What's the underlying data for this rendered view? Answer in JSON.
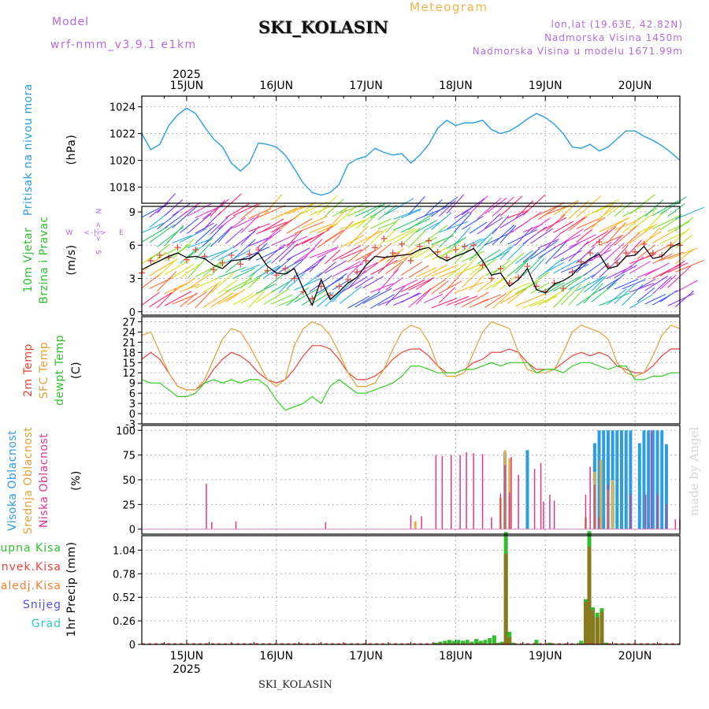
{
  "header": {
    "model_label": "Model",
    "model_value": "wrf-nmm_v3.9.1 e1km",
    "title": "SKI_KOLASIN",
    "product": "Meteogram",
    "lonlat": "lon,lat (19.63E, 42.82N)",
    "altitude": "Nadmorska Visina 1450m",
    "model_altitude": "Nadmorska Visina u modelu 1671.99m",
    "bottom_name": "SKI_KOLASIN",
    "watermark": "made by Angel"
  },
  "time_axis": {
    "year": "2025",
    "days": [
      "15JUN",
      "16JUN",
      "17JUN",
      "18JUN",
      "19JUN",
      "20JUN"
    ]
  },
  "chart_data": [
    {
      "type": "line",
      "name": "pressure",
      "ylabel": "Pritisak na nivou mora",
      "unit": "(hPa)",
      "ylim": [
        1016.8,
        1024.8
      ],
      "yticks": [
        "1018",
        "1020",
        "1022",
        "1024"
      ],
      "x": [
        14.5,
        14.6,
        14.7,
        14.8,
        14.9,
        15.0,
        15.1,
        15.2,
        15.3,
        15.4,
        15.5,
        15.6,
        15.7,
        15.8,
        15.9,
        16.0,
        16.1,
        16.2,
        16.3,
        16.4,
        16.5,
        16.6,
        16.7,
        16.8,
        16.9,
        17.0,
        17.1,
        17.2,
        17.3,
        17.4,
        17.5,
        17.6,
        17.7,
        17.8,
        17.9,
        18.0,
        18.1,
        18.2,
        18.3,
        18.4,
        18.5,
        18.6,
        18.7,
        18.8,
        18.9,
        19.0,
        19.1,
        19.2,
        19.3,
        19.4,
        19.5,
        19.6,
        19.7,
        19.8,
        19.9,
        20.0,
        20.1,
        20.2,
        20.3,
        20.4,
        20.5
      ],
      "y": [
        1022.0,
        1020.8,
        1021.2,
        1022.6,
        1023.4,
        1023.9,
        1023.5,
        1022.5,
        1021.6,
        1021.0,
        1019.8,
        1019.2,
        1019.8,
        1021.3,
        1021.2,
        1021.0,
        1020.4,
        1019.4,
        1018.3,
        1017.6,
        1017.4,
        1017.6,
        1018.2,
        1019.7,
        1020.1,
        1020.3,
        1020.9,
        1020.6,
        1020.4,
        1020.5,
        1019.8,
        1020.4,
        1021.2,
        1022.4,
        1023.0,
        1022.6,
        1022.8,
        1022.8,
        1023.0,
        1022.3,
        1022.0,
        1022.2,
        1022.6,
        1023.1,
        1023.5,
        1023.2,
        1022.7,
        1022.0,
        1021.0,
        1020.9,
        1021.2,
        1020.7,
        1021.0,
        1021.6,
        1022.2,
        1022.2,
        1021.8,
        1021.5,
        1021.1,
        1020.6,
        1020.0
      ]
    },
    {
      "type": "line",
      "name": "wind",
      "ylabel": "10m Vjetar Brzina i Pravac",
      "unit": "(m/s)",
      "compass": {
        "north": "N",
        "south": "S",
        "east": "E",
        "west": "W",
        "arrows": "<-|->"
      },
      "ylim": [
        -0.3,
        9.5
      ],
      "yticks": [
        "0",
        "3",
        "6",
        "9"
      ],
      "x": [
        14.5,
        14.6,
        14.7,
        14.8,
        14.9,
        15.0,
        15.1,
        15.2,
        15.3,
        15.4,
        15.5,
        15.6,
        15.7,
        15.8,
        15.9,
        16.0,
        16.1,
        16.2,
        16.3,
        16.4,
        16.5,
        16.6,
        16.7,
        16.8,
        16.9,
        17.0,
        17.1,
        17.2,
        17.3,
        17.4,
        17.5,
        17.6,
        17.7,
        17.8,
        17.9,
        18.0,
        18.1,
        18.2,
        18.3,
        18.4,
        18.5,
        18.6,
        18.7,
        18.8,
        18.9,
        19.0,
        19.1,
        19.2,
        19.3,
        19.4,
        19.5,
        19.6,
        19.7,
        19.8,
        19.9,
        20.0,
        20.1,
        20.2,
        20.3,
        20.4,
        20.5
      ],
      "y": [
        3.8,
        4.2,
        4.6,
        5.0,
        5.3,
        4.9,
        5.0,
        4.8,
        4.2,
        3.9,
        4.6,
        4.7,
        4.8,
        5.3,
        4.1,
        3.5,
        3.4,
        3.9,
        2.1,
        0.6,
        2.9,
        1.1,
        1.8,
        2.6,
        3.1,
        4.2,
        5.0,
        4.9,
        5.0,
        5.1,
        5.2,
        5.6,
        5.8,
        5.0,
        4.6,
        5.0,
        5.3,
        5.7,
        4.6,
        3.3,
        3.5,
        2.3,
        2.9,
        3.9,
        2.0,
        1.7,
        2.5,
        2.8,
        3.3,
        4.2,
        4.8,
        5.2,
        3.9,
        4.1,
        5.0,
        5.1,
        5.9,
        4.8,
        5.0,
        5.8,
        6.2
      ],
      "gust_y": [
        3.5,
        4.6,
        5.1,
        4.9,
        5.8,
        4.7,
        5.6,
        5.0,
        3.8,
        4.4,
        5.1,
        4.3,
        5.2,
        5.6,
        3.7,
        3.3,
        3.9,
        3.0,
        1.8,
        1.2,
        2.3,
        1.5,
        2.3,
        2.9,
        3.6,
        4.6,
        5.8,
        6.6,
        5.3,
        6.1,
        4.6,
        5.9,
        6.4,
        5.4,
        4.9,
        5.6,
        5.9,
        6.0,
        4.2,
        3.0,
        3.9,
        2.6,
        3.1,
        4.1,
        2.3,
        1.8,
        2.6,
        2.1,
        3.6,
        4.5,
        5.3,
        6.3,
        4.1,
        4.4,
        5.3,
        5.4,
        6.1,
        5.3,
        5.1,
        6.0,
        6.0
      ]
    },
    {
      "type": "line",
      "name": "temperature",
      "ylabel_lines": [
        "2m Temp",
        "SFC Temp",
        "dewpt Temp"
      ],
      "unit": "(C)",
      "ylim": [
        -3,
        28.5
      ],
      "yticks": [
        "-3",
        "0",
        "3",
        "6",
        "9",
        "12",
        "15",
        "18",
        "21",
        "24",
        "27"
      ],
      "x": [
        14.5,
        14.6,
        14.7,
        14.8,
        14.9,
        15.0,
        15.1,
        15.2,
        15.3,
        15.4,
        15.5,
        15.6,
        15.7,
        15.8,
        15.9,
        16.0,
        16.1,
        16.2,
        16.3,
        16.4,
        16.5,
        16.6,
        16.7,
        16.8,
        16.9,
        17.0,
        17.1,
        17.2,
        17.3,
        17.4,
        17.5,
        17.6,
        17.7,
        17.8,
        17.9,
        18.0,
        18.1,
        18.2,
        18.3,
        18.4,
        18.5,
        18.6,
        18.7,
        18.8,
        18.9,
        19.0,
        19.1,
        19.2,
        19.3,
        19.4,
        19.5,
        19.6,
        19.7,
        19.8,
        19.9,
        20.0,
        20.1,
        20.2,
        20.3,
        20.4,
        20.5
      ],
      "series": [
        {
          "name": "2m Temp",
          "color": "#e8453c",
          "values": [
            16,
            18,
            16,
            12,
            8,
            7,
            7,
            9,
            13,
            16,
            18,
            17,
            15,
            12,
            10,
            9,
            10,
            13,
            17,
            20,
            20,
            19,
            16,
            12,
            10,
            10,
            11,
            13,
            16,
            18,
            19,
            19,
            17,
            14,
            12,
            12,
            13,
            15,
            16,
            18,
            18,
            19,
            18,
            15,
            13,
            13,
            13,
            15,
            17,
            18,
            17,
            18,
            17,
            14,
            13,
            12,
            12,
            14,
            17,
            19,
            19
          ]
        },
        {
          "name": "SFC Temp",
          "color": "#e0a13a",
          "values": [
            23,
            24,
            18,
            12,
            8,
            7,
            7,
            10,
            16,
            22,
            25,
            24,
            20,
            15,
            10,
            8,
            10,
            20,
            25,
            27,
            26,
            23,
            18,
            12,
            8,
            8,
            9,
            13,
            19,
            24,
            26,
            25,
            21,
            14,
            11,
            11,
            12,
            18,
            24,
            27,
            26,
            25,
            18,
            13,
            12,
            12,
            13,
            18,
            24,
            26,
            25,
            24,
            22,
            15,
            12,
            11,
            12,
            17,
            23,
            26,
            25
          ]
        },
        {
          "name": "dewpt Temp",
          "color": "#33cc22",
          "values": [
            10,
            9,
            9,
            7,
            5,
            5,
            6,
            9,
            10,
            9,
            10,
            9,
            10,
            10,
            8,
            4,
            1,
            2,
            3,
            5,
            3,
            8,
            10,
            8,
            6,
            6,
            7,
            8,
            9,
            11,
            14,
            14,
            13,
            12,
            12,
            12,
            13,
            13,
            14,
            15,
            14,
            15,
            15,
            15,
            12,
            13,
            13,
            12,
            14,
            15,
            15,
            14,
            13,
            14,
            14,
            10,
            10,
            11,
            11,
            12,
            12
          ]
        }
      ]
    },
    {
      "type": "bar",
      "name": "cloud_cover",
      "ylabel_lines": [
        "Visoka Oblacnost",
        "Srednja Oblacnost",
        "Niska Oblacnost"
      ],
      "unit": "(%)",
      "ylim": [
        -5,
        105
      ],
      "yticks": [
        "0",
        "25",
        "50",
        "75",
        "100"
      ],
      "series": [
        {
          "name": "Visoka Oblacnost",
          "color": "#2b9de0",
          "x": [
            18.55,
            18.8,
            19.55,
            19.6,
            19.65,
            19.7,
            19.75,
            19.8,
            19.85,
            19.9,
            19.95,
            20.05,
            20.1,
            20.15,
            20.2,
            20.25,
            20.3,
            20.35
          ],
          "values": [
            78,
            80,
            87,
            100,
            100,
            100,
            100,
            100,
            100,
            100,
            100,
            87,
            100,
            100,
            100,
            100,
            100,
            86
          ]
        },
        {
          "name": "Srednja Oblacnost",
          "color": "#e4b04a",
          "x": [
            17.55,
            18.5,
            18.55,
            18.6,
            19.45,
            19.55,
            19.62,
            19.7,
            19.75
          ],
          "values": [
            8,
            32,
            80,
            72,
            12,
            58,
            70,
            40,
            50
          ]
        },
        {
          "name": "Niska Oblacnost",
          "color": "#d93a8a",
          "x": [
            15.22,
            15.28,
            15.55,
            16.55,
            17.5,
            17.62,
            17.78,
            17.85,
            17.95,
            18.05,
            18.12,
            18.2,
            18.3,
            18.4,
            18.5,
            18.55,
            18.6,
            18.62,
            18.7,
            18.88,
            18.95,
            18.98,
            19.05,
            19.1,
            19.45,
            19.5,
            19.55,
            19.6,
            19.7,
            19.95,
            20.12,
            20.18,
            20.25,
            20.35,
            20.45,
            20.5
          ],
          "values": [
            46,
            7,
            8,
            7,
            14,
            13,
            75,
            74,
            75,
            75,
            78,
            77,
            76,
            12,
            36,
            65,
            37,
            73,
            55,
            61,
            67,
            28,
            35,
            29,
            35,
            63,
            45,
            12,
            45,
            35,
            35,
            100,
            35,
            25,
            10,
            10
          ]
        }
      ]
    },
    {
      "type": "bar",
      "name": "precipitation",
      "ylabel": "1hr Precip",
      "unit": "(mm)",
      "legend": [
        {
          "name": "Ukupna Kisa",
          "color": "#2fbf2f"
        },
        {
          "name": "Konvek.Kisa",
          "color": "#e8453c"
        },
        {
          "name": "Zaledj.Kisa",
          "color": "#f07f30"
        },
        {
          "name": "Snijeg",
          "color": "#4e52e0"
        },
        {
          "name": "Grad",
          "color": "#2bc8c8"
        }
      ],
      "ylim": [
        0,
        1.2
      ],
      "yticks": [
        "0",
        "0.26",
        "0.52",
        "0.78",
        "1.04"
      ],
      "x": [
        17.78,
        17.83,
        17.88,
        17.93,
        17.98,
        18.03,
        18.08,
        18.13,
        18.18,
        18.23,
        18.28,
        18.33,
        18.38,
        18.43,
        18.48,
        18.52,
        18.56,
        18.6,
        18.64,
        18.9,
        19.05,
        19.4,
        19.45,
        19.49,
        19.53,
        19.58,
        19.63,
        19.68
      ],
      "values": [
        0.02,
        0.03,
        0.04,
        0.05,
        0.04,
        0.05,
        0.04,
        0.05,
        0.03,
        0.06,
        0.04,
        0.05,
        0.07,
        0.1,
        0.02,
        0.03,
        1.24,
        0.14,
        0.02,
        0.05,
        0.02,
        0.04,
        0.5,
        1.25,
        0.41,
        0.35,
        0.4,
        0.02
      ],
      "convective": [
        0,
        0,
        0,
        0,
        0,
        0,
        0,
        0,
        0,
        0,
        0,
        0,
        0,
        0,
        0,
        0,
        1.0,
        0.08,
        0,
        0,
        0,
        0,
        0.47,
        1.08,
        0.38,
        0.3,
        0.36,
        0
      ]
    }
  ]
}
